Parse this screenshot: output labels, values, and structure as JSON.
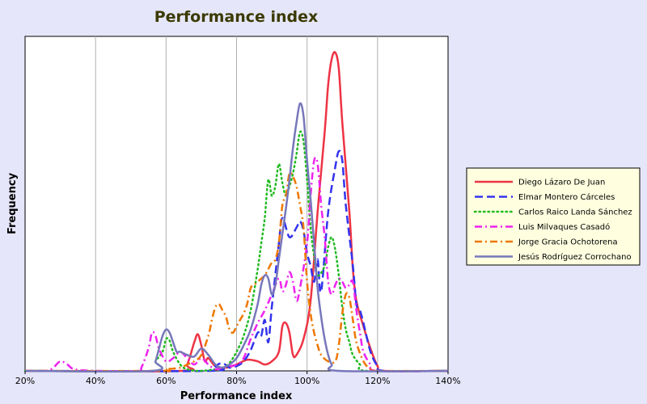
{
  "chart_data": {
    "type": "line",
    "title": "Performance index",
    "xlabel": "Performance index",
    "ylabel": "Frequency",
    "xlim": [
      20,
      140
    ],
    "ylim": [
      0,
      1
    ],
    "x_ticks": [
      20,
      40,
      60,
      80,
      100,
      120,
      140
    ],
    "x_tick_labels": [
      "20%",
      "40%",
      "60%",
      "80%",
      "100%",
      "120%",
      "140%"
    ],
    "grid": "vertical",
    "legend_position": "right",
    "series": [
      {
        "name": "Diego Lázaro De Juan",
        "color": "#ee3344",
        "style": "solid",
        "points": [
          [
            20,
            0
          ],
          [
            64,
            0
          ],
          [
            66,
            0.02
          ],
          [
            68,
            0.09
          ],
          [
            69,
            0.115
          ],
          [
            70,
            0.08
          ],
          [
            71,
            0.03
          ],
          [
            72,
            0.04
          ],
          [
            74,
            0.015
          ],
          [
            77,
            0.01
          ],
          [
            80,
            0.02
          ],
          [
            83,
            0.035
          ],
          [
            86,
            0.03
          ],
          [
            88,
            0.02
          ],
          [
            90,
            0.03
          ],
          [
            92,
            0.06
          ],
          [
            93,
            0.14
          ],
          [
            94,
            0.15
          ],
          [
            95,
            0.12
          ],
          [
            96,
            0.05
          ],
          [
            97,
            0.05
          ],
          [
            99,
            0.1
          ],
          [
            101,
            0.22
          ],
          [
            103,
            0.5
          ],
          [
            105,
            0.75
          ],
          [
            106,
            0.9
          ],
          [
            107,
            0.98
          ],
          [
            108,
            1.0
          ],
          [
            109,
            0.95
          ],
          [
            110,
            0.78
          ],
          [
            112,
            0.5
          ],
          [
            113,
            0.32
          ],
          [
            114,
            0.22
          ],
          [
            116,
            0.14
          ],
          [
            118,
            0.07
          ],
          [
            120,
            0.015
          ],
          [
            122,
            0
          ],
          [
            140,
            0
          ]
        ]
      },
      {
        "name": "Elmar Montero Cárceles",
        "color": "#3333ee",
        "style": "dash",
        "points": [
          [
            20,
            0
          ],
          [
            72,
            0
          ],
          [
            74,
            0.015
          ],
          [
            76,
            0.025
          ],
          [
            78,
            0.01
          ],
          [
            80,
            0.015
          ],
          [
            82,
            0.03
          ],
          [
            84,
            0.065
          ],
          [
            86,
            0.12
          ],
          [
            87,
            0.11
          ],
          [
            88,
            0.16
          ],
          [
            89,
            0.09
          ],
          [
            90,
            0.2
          ],
          [
            92,
            0.4
          ],
          [
            93,
            0.48
          ],
          [
            95,
            0.42
          ],
          [
            97,
            0.45
          ],
          [
            98,
            0.47
          ],
          [
            99,
            0.44
          ],
          [
            100,
            0.37
          ],
          [
            101,
            0.33
          ],
          [
            102,
            0.28
          ],
          [
            103,
            0.35
          ],
          [
            104,
            0.25
          ],
          [
            106,
            0.5
          ],
          [
            108,
            0.64
          ],
          [
            109,
            0.69
          ],
          [
            110,
            0.66
          ],
          [
            111,
            0.52
          ],
          [
            113,
            0.33
          ],
          [
            114,
            0.21
          ],
          [
            115,
            0.19
          ],
          [
            116,
            0.15
          ],
          [
            118,
            0.06
          ],
          [
            120,
            0.015
          ],
          [
            122,
            0
          ],
          [
            140,
            0
          ]
        ]
      },
      {
        "name": "Carlos Raico Landa Sánchez",
        "color": "#22bb22",
        "style": "dot",
        "points": [
          [
            20,
            0
          ],
          [
            56,
            0
          ],
          [
            57,
            0.03
          ],
          [
            59,
            0.06
          ],
          [
            60,
            0.1
          ],
          [
            61,
            0.095
          ],
          [
            62,
            0.06
          ],
          [
            64,
            0.02
          ],
          [
            66,
            0.005
          ],
          [
            70,
            0
          ],
          [
            76,
            0.01
          ],
          [
            78,
            0.025
          ],
          [
            80,
            0.06
          ],
          [
            82,
            0.11
          ],
          [
            84,
            0.19
          ],
          [
            86,
            0.32
          ],
          [
            87,
            0.4
          ],
          [
            88,
            0.48
          ],
          [
            89,
            0.6
          ],
          [
            90,
            0.55
          ],
          [
            91,
            0.58
          ],
          [
            92,
            0.65
          ],
          [
            93,
            0.59
          ],
          [
            94,
            0.55
          ],
          [
            95,
            0.58
          ],
          [
            96,
            0.62
          ],
          [
            97,
            0.68
          ],
          [
            98,
            0.75
          ],
          [
            99,
            0.72
          ],
          [
            100,
            0.6
          ],
          [
            101,
            0.45
          ],
          [
            102,
            0.36
          ],
          [
            103,
            0.3
          ],
          [
            105,
            0.33
          ],
          [
            106,
            0.39
          ],
          [
            107,
            0.42
          ],
          [
            108,
            0.38
          ],
          [
            109,
            0.3
          ],
          [
            110,
            0.2
          ],
          [
            111,
            0.13
          ],
          [
            112,
            0.09
          ],
          [
            113,
            0.05
          ],
          [
            115,
            0.02
          ],
          [
            117,
            0
          ],
          [
            140,
            0
          ]
        ]
      },
      {
        "name": "Luis Milvaques Casadó",
        "color": "#ee22ee",
        "style": "dashdot",
        "points": [
          [
            20,
            0
          ],
          [
            26,
            0
          ],
          [
            28,
            0.01
          ],
          [
            30,
            0.03
          ],
          [
            32,
            0.02
          ],
          [
            34,
            0.005
          ],
          [
            40,
            0
          ],
          [
            52,
            0
          ],
          [
            53,
            0.01
          ],
          [
            55,
            0.07
          ],
          [
            56,
            0.12
          ],
          [
            57,
            0.11
          ],
          [
            58,
            0.07
          ],
          [
            60,
            0.03
          ],
          [
            62,
            0.04
          ],
          [
            64,
            0.06
          ],
          [
            66,
            0.04
          ],
          [
            68,
            0.02
          ],
          [
            70,
            0.04
          ],
          [
            72,
            0.02
          ],
          [
            74,
            0.005
          ],
          [
            76,
            0.01
          ],
          [
            80,
            0.02
          ],
          [
            82,
            0.04
          ],
          [
            84,
            0.1
          ],
          [
            86,
            0.15
          ],
          [
            88,
            0.19
          ],
          [
            90,
            0.24
          ],
          [
            92,
            0.29
          ],
          [
            93,
            0.25
          ],
          [
            94,
            0.27
          ],
          [
            95,
            0.31
          ],
          [
            96,
            0.28
          ],
          [
            97,
            0.22
          ],
          [
            98,
            0.26
          ],
          [
            100,
            0.4
          ],
          [
            101,
            0.55
          ],
          [
            102,
            0.66
          ],
          [
            103,
            0.65
          ],
          [
            104,
            0.52
          ],
          [
            105,
            0.42
          ],
          [
            106,
            0.28
          ],
          [
            107,
            0.24
          ],
          [
            108,
            0.27
          ],
          [
            109,
            0.29
          ],
          [
            110,
            0.28
          ],
          [
            111,
            0.26
          ],
          [
            112,
            0.27
          ],
          [
            113,
            0.28
          ],
          [
            114,
            0.19
          ],
          [
            115,
            0.12
          ],
          [
            116,
            0.06
          ],
          [
            118,
            0.02
          ],
          [
            120,
            0
          ],
          [
            140,
            0
          ]
        ]
      },
      {
        "name": "Jorge Gracia Ochotorena",
        "color": "#ee7700",
        "style": "dashdot",
        "points": [
          [
            20,
            0
          ],
          [
            58,
            0
          ],
          [
            60,
            0.005
          ],
          [
            64,
            0.01
          ],
          [
            66,
            0.02
          ],
          [
            68,
            0.03
          ],
          [
            70,
            0.05
          ],
          [
            72,
            0.11
          ],
          [
            73,
            0.16
          ],
          [
            74,
            0.2
          ],
          [
            75,
            0.21
          ],
          [
            76,
            0.19
          ],
          [
            77,
            0.17
          ],
          [
            78,
            0.13
          ],
          [
            79,
            0.12
          ],
          [
            80,
            0.14
          ],
          [
            81,
            0.16
          ],
          [
            82,
            0.18
          ],
          [
            83,
            0.21
          ],
          [
            84,
            0.26
          ],
          [
            85,
            0.27
          ],
          [
            86,
            0.28
          ],
          [
            87,
            0.29
          ],
          [
            88,
            0.3
          ],
          [
            89,
            0.32
          ],
          [
            90,
            0.34
          ],
          [
            91,
            0.35
          ],
          [
            92,
            0.4
          ],
          [
            93,
            0.52
          ],
          [
            94,
            0.55
          ],
          [
            95,
            0.62
          ],
          [
            96,
            0.61
          ],
          [
            97,
            0.58
          ],
          [
            98,
            0.52
          ],
          [
            99,
            0.45
          ],
          [
            100,
            0.28
          ],
          [
            101,
            0.18
          ],
          [
            102,
            0.12
          ],
          [
            103,
            0.08
          ],
          [
            104,
            0.05
          ],
          [
            106,
            0.03
          ],
          [
            108,
            0.03
          ],
          [
            109,
            0.08
          ],
          [
            110,
            0.18
          ],
          [
            111,
            0.24
          ],
          [
            112,
            0.23
          ],
          [
            113,
            0.16
          ],
          [
            114,
            0.09
          ],
          [
            116,
            0.03
          ],
          [
            118,
            0.005
          ],
          [
            120,
            0
          ],
          [
            140,
            0
          ]
        ]
      },
      {
        "name": "Jesús Rodríguez Corrochano",
        "color": "#7777bb",
        "style": "solid",
        "points": [
          [
            20,
            0
          ],
          [
            56,
            0
          ],
          [
            57,
            0.03
          ],
          [
            58,
            0.07
          ],
          [
            59,
            0.11
          ],
          [
            60,
            0.13
          ],
          [
            61,
            0.12
          ],
          [
            62,
            0.09
          ],
          [
            63,
            0.06
          ],
          [
            64,
            0.06
          ],
          [
            66,
            0.05
          ],
          [
            68,
            0.045
          ],
          [
            70,
            0.07
          ],
          [
            72,
            0.05
          ],
          [
            74,
            0.02
          ],
          [
            76,
            0.01
          ],
          [
            78,
            0.02
          ],
          [
            80,
            0.04
          ],
          [
            82,
            0.08
          ],
          [
            84,
            0.13
          ],
          [
            86,
            0.21
          ],
          [
            87,
            0.27
          ],
          [
            88,
            0.3
          ],
          [
            89,
            0.29
          ],
          [
            90,
            0.24
          ],
          [
            91,
            0.27
          ],
          [
            92,
            0.35
          ],
          [
            94,
            0.51
          ],
          [
            95,
            0.6
          ],
          [
            96,
            0.7
          ],
          [
            97,
            0.78
          ],
          [
            98,
            0.84
          ],
          [
            99,
            0.8
          ],
          [
            100,
            0.66
          ],
          [
            101,
            0.54
          ],
          [
            102,
            0.4
          ],
          [
            103,
            0.26
          ],
          [
            104,
            0.17
          ],
          [
            105,
            0.1
          ],
          [
            106,
            0.05
          ],
          [
            107,
            0.02
          ],
          [
            109,
            0
          ],
          [
            140,
            0
          ]
        ]
      }
    ]
  }
}
